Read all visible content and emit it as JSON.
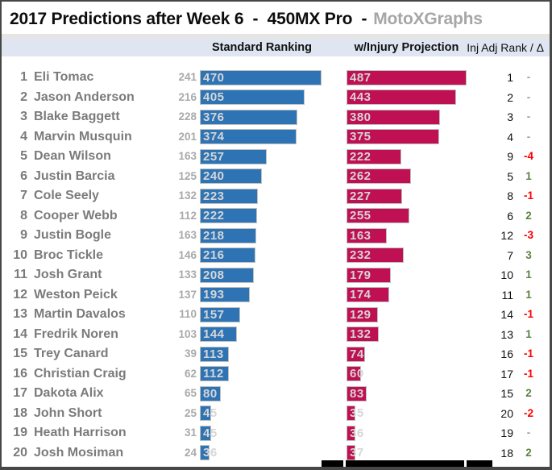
{
  "header": {
    "title_main": "2017 Predictions after Week 6  -  450MX Pro  -",
    "title_brand": "MotoXGraphs"
  },
  "columns": {
    "standard": "Standard Ranking",
    "injury": "w/Injury Projection",
    "inj_adj": "Inj Adj Rank / Δ"
  },
  "colors": {
    "blue_bar": "#2e74b5",
    "red_bar": "#be1052",
    "bar_border": "#c0c0c0",
    "bar_text": "#d6d6d6",
    "brand_text": "#a6a6a6",
    "name_text": "#7b7b7b",
    "gray_value_text": "#a9a9a9",
    "delta_positive": "#5d8240",
    "delta_negative": "#fe0000",
    "delta_none": "#97a687",
    "header_band_bg": "#dfe5f1"
  },
  "chart_data": {
    "type": "bar",
    "orientation": "horizontal",
    "title": "2017 Predictions after Week 6 - 450MX Pro - MotoXGraphs",
    "value_labels_shown": true,
    "categories": [
      "Eli Tomac",
      "Jason Anderson",
      "Blake Baggett",
      "Marvin Musquin",
      "Dean Wilson",
      "Justin Barcia",
      "Cole Seely",
      "Cooper Webb",
      "Justin Bogle",
      "Broc Tickle",
      "Josh Grant",
      "Weston Peick",
      "Martin Davalos",
      "Fredrik Noren",
      "Trey Canard",
      "Christian Craig",
      "Dakota Alix",
      "John Short",
      "Heath Harrison",
      "Josh Mosiman"
    ],
    "rank": [
      1,
      2,
      3,
      4,
      5,
      6,
      7,
      8,
      9,
      10,
      11,
      12,
      13,
      14,
      15,
      16,
      17,
      18,
      19,
      20
    ],
    "gray_values": [
      241,
      216,
      228,
      201,
      163,
      125,
      132,
      112,
      163,
      146,
      133,
      137,
      110,
      103,
      39,
      62,
      65,
      25,
      31,
      24
    ],
    "series": [
      {
        "name": "Standard Ranking",
        "color_key": "blue_bar",
        "values": [
          470,
          405,
          376,
          374,
          257,
          240,
          223,
          222,
          218,
          216,
          208,
          193,
          157,
          144,
          113,
          112,
          80,
          45,
          45,
          36
        ]
      },
      {
        "name": "w/Injury Projection",
        "color_key": "red_bar",
        "values": [
          487,
          443,
          380,
          375,
          222,
          262,
          227,
          255,
          163,
          232,
          179,
          174,
          129,
          132,
          74,
          60,
          83,
          35,
          36,
          37
        ]
      }
    ],
    "inj_adj_rank": [
      1,
      2,
      3,
      4,
      9,
      5,
      8,
      6,
      12,
      7,
      10,
      11,
      14,
      13,
      16,
      17,
      15,
      20,
      19,
      18
    ],
    "delta": [
      "-",
      "-",
      "-",
      "-",
      "-4",
      "1",
      "-1",
      "2",
      "-3",
      "3",
      "1",
      "1",
      "-1",
      "1",
      "-1",
      "-1",
      "2",
      "-2",
      "-",
      "2"
    ]
  }
}
